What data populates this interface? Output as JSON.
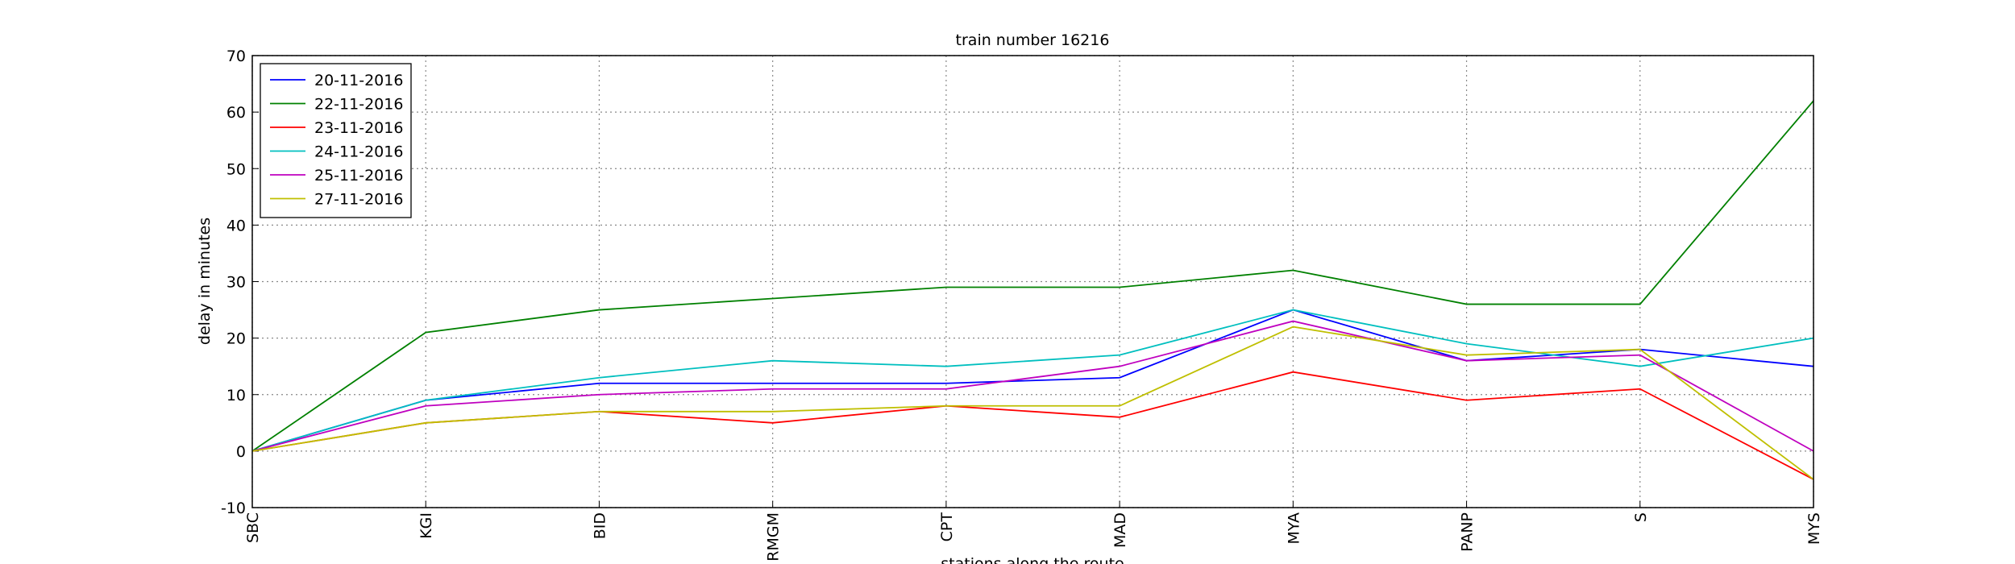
{
  "chart_data": {
    "type": "line",
    "title": "train number 16216",
    "x_label": "stations along the route",
    "y_label": "delay in minutes",
    "categories": [
      "SBC",
      "KGI",
      "BID",
      "RMGM",
      "CPT",
      "MAD",
      "MYA",
      "PANP",
      "S",
      "MYS"
    ],
    "series": [
      {
        "name": "20-11-2016",
        "color": "#0000ff",
        "values": [
          0,
          9,
          12,
          12,
          12,
          13,
          25,
          16,
          18,
          15
        ]
      },
      {
        "name": "22-11-2016",
        "color": "#008000",
        "values": [
          0,
          21,
          25,
          27,
          29,
          29,
          32,
          26,
          26,
          62
        ]
      },
      {
        "name": "23-11-2016",
        "color": "#ff0000",
        "values": [
          0,
          5,
          7,
          5,
          8,
          6,
          14,
          9,
          11,
          -5
        ]
      },
      {
        "name": "24-11-2016",
        "color": "#00bfbf",
        "values": [
          0,
          9,
          13,
          16,
          15,
          17,
          25,
          19,
          15,
          20
        ]
      },
      {
        "name": "25-11-2016",
        "color": "#bf00bf",
        "values": [
          0,
          8,
          10,
          11,
          11,
          15,
          23,
          16,
          17,
          0
        ]
      },
      {
        "name": "27-11-2016",
        "color": "#bfbf00",
        "values": [
          0,
          5,
          7,
          7,
          8,
          8,
          22,
          17,
          18,
          -5
        ]
      }
    ],
    "ylim": [
      -10,
      70
    ],
    "yticks": [
      -10,
      0,
      10,
      20,
      30,
      40,
      50,
      60,
      70
    ],
    "grid": true,
    "legend": "upper left"
  }
}
